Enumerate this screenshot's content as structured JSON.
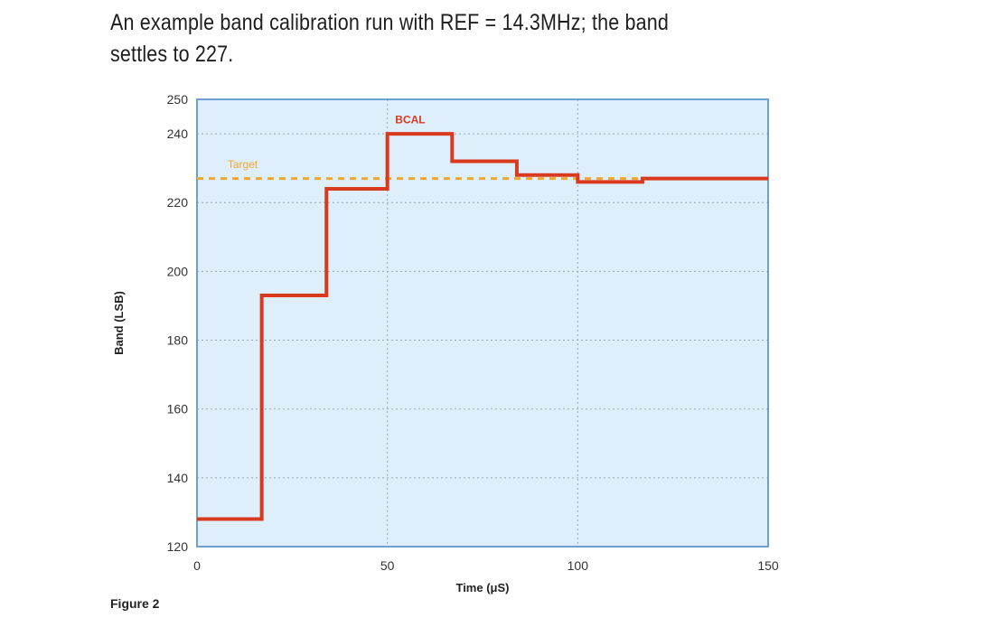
{
  "caption": "An example band calibration run with REF = 14.3MHz; the band settles to 227.",
  "figure_label": "Figure 2",
  "colors": {
    "plot_background": "#dfeefb",
    "series_line": "#d93a1e",
    "target_line": "#f0a830",
    "grid": "#9aa8b8",
    "frame": "#6fa0d4"
  },
  "chart_data": {
    "type": "line",
    "xlabel": "Time (μS)",
    "ylabel": "Band (LSB)",
    "xlim": [
      0,
      150
    ],
    "ylim": [
      120,
      250
    ],
    "x_ticks": [
      0,
      50,
      100,
      150
    ],
    "y_ticks": [
      120,
      140,
      160,
      180,
      200,
      220,
      240,
      250
    ],
    "grid": true,
    "series": [
      {
        "name": "BCAL",
        "step": true,
        "x": [
          0,
          17,
          34,
          50,
          67,
          84,
          100,
          117,
          150
        ],
        "values": [
          128,
          193,
          224,
          240,
          232,
          228,
          226,
          227,
          227
        ]
      }
    ],
    "reference_lines": [
      {
        "name": "Target",
        "y": 227
      }
    ],
    "annotations": [
      {
        "text": "BCAL",
        "x": 56,
        "y": 243
      },
      {
        "text": "Target",
        "x": 12,
        "y": 230
      }
    ]
  }
}
